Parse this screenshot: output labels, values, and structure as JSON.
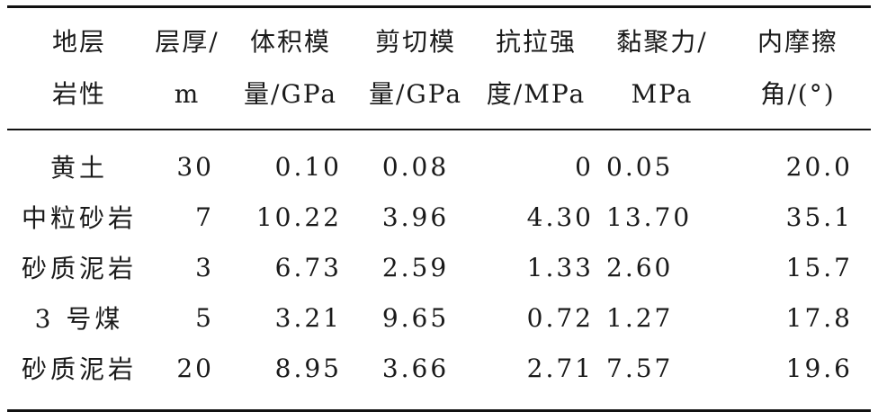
{
  "table": {
    "headers": [
      [
        "地层",
        "岩性"
      ],
      [
        "层厚/",
        "m"
      ],
      [
        "体积模",
        "量/GPa"
      ],
      [
        "剪切模",
        "量/GPa"
      ],
      [
        "抗拉强",
        "度/MPa"
      ],
      [
        "黏聚力/",
        "MPa"
      ],
      [
        "内摩擦",
        "角/(°)"
      ]
    ],
    "rows": [
      [
        "黄土",
        "30",
        "0.10",
        "0.08",
        "0",
        "0.05",
        "20.0"
      ],
      [
        "中粒砂岩",
        "7",
        "10.22",
        "3.96",
        "4.30",
        "13.70",
        "35.1"
      ],
      [
        "砂质泥岩",
        "3",
        "6.73",
        "2.59",
        "1.33",
        "2.60",
        "15.7"
      ],
      [
        "3 号煤",
        "5",
        "3.21",
        "9.65",
        "0.72",
        "1.27",
        "17.8"
      ],
      [
        "砂质泥岩",
        "20",
        "8.95",
        "3.66",
        "2.71",
        "7.57",
        "19.6"
      ]
    ]
  }
}
